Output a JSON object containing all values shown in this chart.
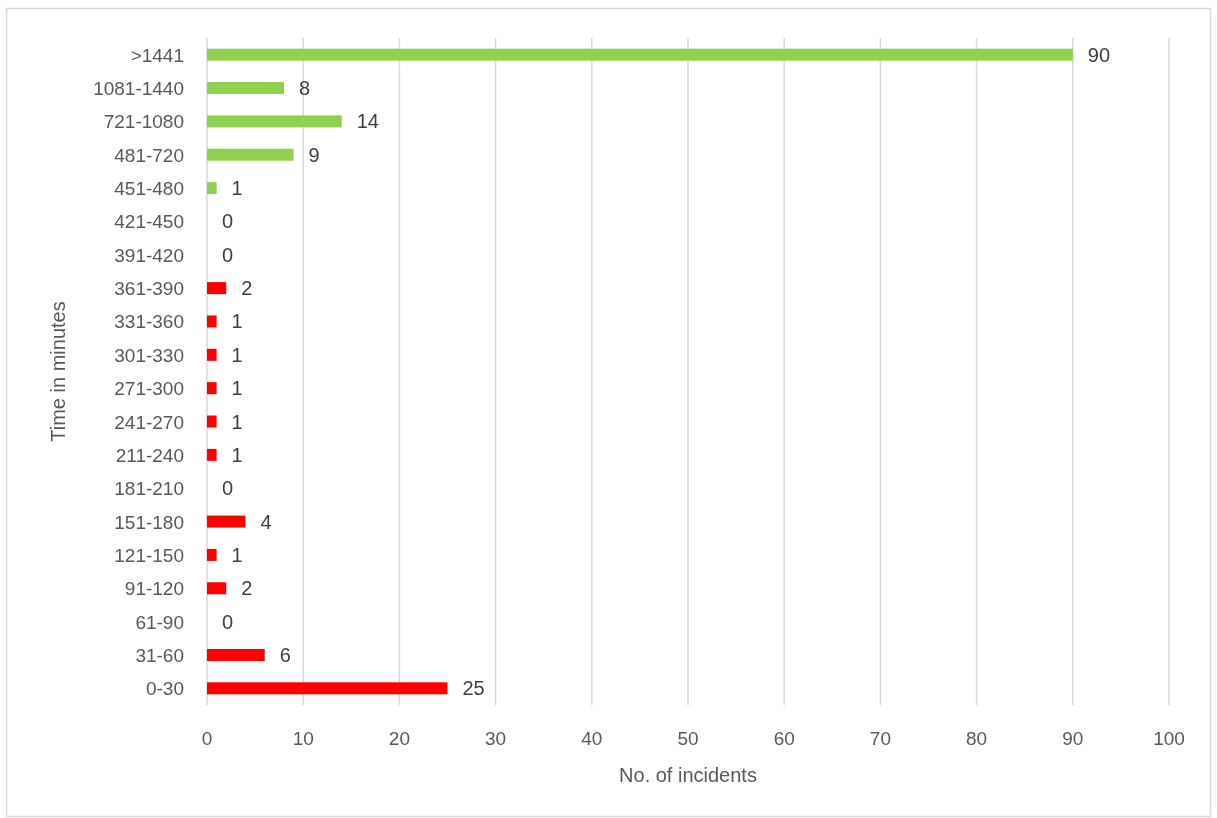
{
  "chart_data": {
    "type": "bar",
    "orientation": "horizontal",
    "xlabel": "No. of incidents",
    "ylabel": "Time in minutes",
    "categories": [
      ">1441",
      "1081-1440",
      "721-1080",
      "481-720",
      "451-480",
      "421-450",
      "391-420",
      "361-390",
      "331-360",
      "301-330",
      "271-300",
      "241-270",
      "211-240",
      "181-210",
      "151-180",
      "121-150",
      "91-120",
      "61-90",
      "31-60",
      "0-30"
    ],
    "values": [
      90,
      8,
      14,
      9,
      1,
      0,
      0,
      2,
      1,
      1,
      1,
      1,
      1,
      0,
      4,
      1,
      2,
      0,
      6,
      25
    ],
    "colors": [
      "#92d050",
      "#92d050",
      "#92d050",
      "#92d050",
      "#92d050",
      "#ff0000",
      "#ff0000",
      "#ff0000",
      "#ff0000",
      "#ff0000",
      "#ff0000",
      "#ff0000",
      "#ff0000",
      "#ff0000",
      "#ff0000",
      "#ff0000",
      "#ff0000",
      "#ff0000",
      "#ff0000",
      "#ff0000"
    ],
    "xlim": [
      0,
      100
    ],
    "xticks": [
      0,
      10,
      20,
      30,
      40,
      50,
      60,
      70,
      80,
      90,
      100
    ],
    "grid": "x",
    "data_labels": true
  }
}
